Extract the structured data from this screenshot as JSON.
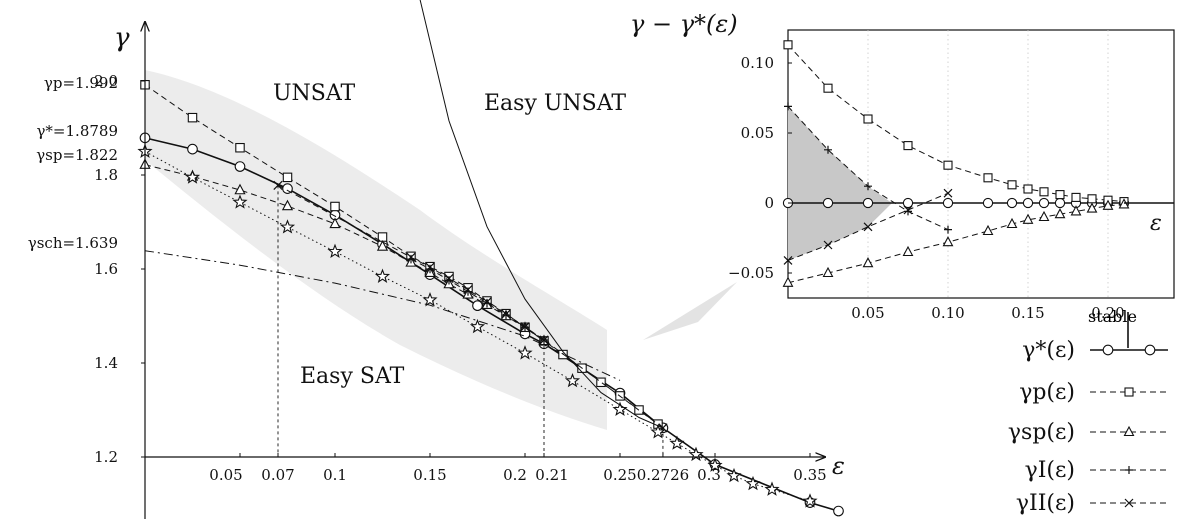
{
  "chart_data": [
    {
      "type": "line",
      "ylabel": "γ",
      "xlabel": "ε",
      "xlim": [
        0,
        0.365
      ],
      "ylim": [
        1.1,
        2.25
      ],
      "x_ticks": [
        {
          "v": 0.05,
          "label": "0.05"
        },
        {
          "v": 0.07,
          "label": "0.07"
        },
        {
          "v": 0.1,
          "label": "0.1"
        },
        {
          "v": 0.15,
          "label": "0.15"
        },
        {
          "v": 0.2,
          "label": "0.2"
        },
        {
          "v": 0.21,
          "label": "0.21"
        },
        {
          "v": 0.25,
          "label": "0.25"
        },
        {
          "v": 0.2726,
          "label": "0.2726"
        },
        {
          "v": 0.3,
          "label": "0.3"
        },
        {
          "v": 0.35,
          "label": "0.35"
        }
      ],
      "y_ticks": [
        {
          "v": 2.0,
          "label": "2.0"
        },
        {
          "v": 1.8,
          "label": "1.8"
        },
        {
          "v": 1.6,
          "label": "1.6"
        },
        {
          "v": 1.4,
          "label": "1.4"
        },
        {
          "v": 1.2,
          "label": "1.2"
        }
      ],
      "y_annotations": [
        {
          "v": 1.992,
          "label": "γp=1.992"
        },
        {
          "v": 1.8789,
          "label": "γ*=1.8789"
        },
        {
          "v": 1.822,
          "label": "γsp=1.822"
        },
        {
          "v": 1.639,
          "label": "γsch=1.639"
        }
      ],
      "regions": [
        "UNSAT",
        "Easy UNSAT",
        "Easy SAT"
      ],
      "series": [
        {
          "name": "γ*(ε)",
          "marker": "circle",
          "style": "solid",
          "x": [
            0,
            0.025,
            0.05,
            0.075,
            0.1,
            0.125,
            0.15,
            0.175,
            0.2,
            0.21,
            0.25,
            0.2726,
            0.3,
            0.35,
            0.365
          ],
          "y": [
            1.879,
            1.855,
            1.818,
            1.771,
            1.715,
            1.653,
            1.588,
            1.522,
            1.462,
            1.441,
            1.336,
            1.262,
            1.184,
            1.103,
            1.085
          ]
        },
        {
          "name": "γp(ε)",
          "marker": "square",
          "style": "dashed",
          "x": [
            0,
            0.025,
            0.05,
            0.075,
            0.1,
            0.125,
            0.14,
            0.15,
            0.16,
            0.17,
            0.18,
            0.19,
            0.2,
            0.21,
            0.22,
            0.23,
            0.24,
            0.25,
            0.26,
            0.27
          ],
          "y": [
            1.992,
            1.922,
            1.858,
            1.795,
            1.733,
            1.668,
            1.627,
            1.605,
            1.584,
            1.56,
            1.532,
            1.505,
            1.476,
            1.447,
            1.418,
            1.389,
            1.359,
            1.33,
            1.3,
            1.27
          ]
        },
        {
          "name": "γsp(ε)",
          "marker": "triangle",
          "style": "dashed",
          "x": [
            0,
            0.025,
            0.05,
            0.075,
            0.1,
            0.125,
            0.14,
            0.15,
            0.16,
            0.17,
            0.18,
            0.19,
            0.2,
            0.21
          ],
          "y": [
            1.822,
            1.797,
            1.768,
            1.734,
            1.696,
            1.648,
            1.614,
            1.592,
            1.568,
            1.546,
            1.524,
            1.5,
            1.475,
            1.447
          ]
        },
        {
          "name": "γI(ε)",
          "marker": "plus",
          "style": "dashed",
          "x": [
            0.14,
            0.15,
            0.16,
            0.17,
            0.18,
            0.19,
            0.2,
            0.21
          ],
          "y": [
            1.621,
            1.6,
            1.576,
            1.552,
            1.527,
            1.502,
            1.476,
            1.449
          ]
        },
        {
          "name": "γII(ε)",
          "marker": "cross",
          "style": "dashed",
          "x": [
            0.07,
            0.14,
            0.15,
            0.16,
            0.17,
            0.18,
            0.19,
            0.2,
            0.21,
            0.2726
          ],
          "y": [
            1.778,
            1.625,
            1.604,
            1.58,
            1.556,
            1.53,
            1.504,
            1.477,
            1.449,
            1.262
          ]
        },
        {
          "name": "",
          "marker": "star",
          "style": "dotted",
          "x": [
            0,
            0.025,
            0.05,
            0.075,
            0.1,
            0.125,
            0.15,
            0.175,
            0.2,
            0.225,
            0.25,
            0.27,
            0.28,
            0.29,
            0.3,
            0.31,
            0.32,
            0.33,
            0.35
          ],
          "y": [
            1.85,
            1.795,
            1.742,
            1.689,
            1.637,
            1.584,
            1.534,
            1.477,
            1.421,
            1.362,
            1.301,
            1.253,
            1.229,
            1.205,
            1.182,
            1.16,
            1.143,
            1.131,
            1.106
          ]
        },
        {
          "name": "",
          "marker": "none",
          "style": "dashdot",
          "x": [
            0,
            0.05,
            0.1,
            0.15,
            0.2,
            0.25
          ],
          "y": [
            1.639,
            1.608,
            1.57,
            1.523,
            1.457,
            1.363
          ]
        },
        {
          "name": "",
          "marker": "none",
          "style": "solid-thin",
          "x": [
            0.142,
            0.16,
            0.18,
            0.2,
            0.22,
            0.24,
            0.26,
            0.2726
          ],
          "y": [
            2.22,
            1.915,
            1.69,
            1.536,
            1.424,
            1.337,
            1.284,
            1.262
          ]
        }
      ]
    },
    {
      "type": "line",
      "ylabel": "γ − γ*(ε)",
      "xlabel": "ε",
      "xlim": [
        0,
        0.245
      ],
      "ylim": [
        -0.06,
        0.135
      ],
      "x_ticks": [
        {
          "v": 0.05,
          "label": "0.05"
        },
        {
          "v": 0.1,
          "label": "0.10"
        },
        {
          "v": 0.15,
          "label": "0.15"
        },
        {
          "v": 0.2,
          "label": "0.20"
        }
      ],
      "y_ticks": [
        {
          "v": 0.1,
          "label": "0.10"
        },
        {
          "v": 0.05,
          "label": "0.05"
        },
        {
          "v": 0,
          "label": "0"
        },
        {
          "v": -0.05,
          "label": "−0.05"
        }
      ],
      "grid": "vertical",
      "series": [
        {
          "name": "γ*(ε)",
          "marker": "circle",
          "x": [
            0,
            0.025,
            0.05,
            0.075,
            0.1,
            0.125,
            0.14,
            0.15,
            0.16,
            0.17,
            0.18,
            0.19,
            0.2,
            0.21
          ],
          "y": [
            0,
            0,
            0,
            0,
            0,
            0,
            0,
            0,
            0,
            0,
            0,
            0,
            0,
            0
          ]
        },
        {
          "name": "γp(ε)",
          "marker": "square",
          "x": [
            0,
            0.025,
            0.05,
            0.075,
            0.1,
            0.125,
            0.14,
            0.15,
            0.16,
            0.17,
            0.18,
            0.19,
            0.2,
            0.21
          ],
          "y": [
            0.113,
            0.082,
            0.06,
            0.041,
            0.027,
            0.018,
            0.013,
            0.01,
            0.008,
            0.006,
            0.004,
            0.003,
            0.002,
            0.001
          ]
        },
        {
          "name": "γsp(ε)",
          "marker": "triangle",
          "x": [
            0,
            0.025,
            0.05,
            0.075,
            0.1,
            0.125,
            0.14,
            0.15,
            0.16,
            0.17,
            0.18,
            0.19,
            0.2,
            0.21
          ],
          "y": [
            -0.057,
            -0.05,
            -0.043,
            -0.035,
            -0.028,
            -0.02,
            -0.015,
            -0.012,
            -0.01,
            -0.008,
            -0.006,
            -0.004,
            -0.002,
            -0.001
          ]
        },
        {
          "name": "γI(ε)",
          "marker": "plus",
          "x": [
            0,
            0.025,
            0.05,
            0.075,
            0.1
          ],
          "y": [
            0.069,
            0.038,
            0.012,
            -0.006,
            -0.019
          ]
        },
        {
          "name": "γII(ε)",
          "marker": "cross",
          "x": [
            0,
            0.025,
            0.05,
            0.075,
            0.1
          ],
          "y": [
            -0.041,
            -0.03,
            -0.017,
            -0.005,
            0.007
          ]
        }
      ],
      "shaded_region": {
        "x": [
          0,
          0.025,
          0.05,
          0.065
        ],
        "upper": [
          0.069,
          0.038,
          0.012,
          0
        ],
        "lower": [
          -0.041,
          -0.03,
          -0.017,
          0
        ]
      }
    }
  ],
  "legend": {
    "title": "stable",
    "items": [
      {
        "label": "γ*(ε)",
        "marker": "circle",
        "style": "solid"
      },
      {
        "label": "γp(ε)",
        "marker": "square",
        "style": "dashed"
      },
      {
        "label": "γsp(ε)",
        "marker": "triangle",
        "style": "dashed"
      },
      {
        "label": "γI(ε)",
        "marker": "plus",
        "style": "dashed"
      },
      {
        "label": "γII(ε)",
        "marker": "cross",
        "style": "dashed"
      }
    ]
  },
  "colors": {
    "ink": "#111111",
    "band": "#ececec",
    "shade": "#c8c8c8",
    "grid": "#c9c9c9"
  }
}
